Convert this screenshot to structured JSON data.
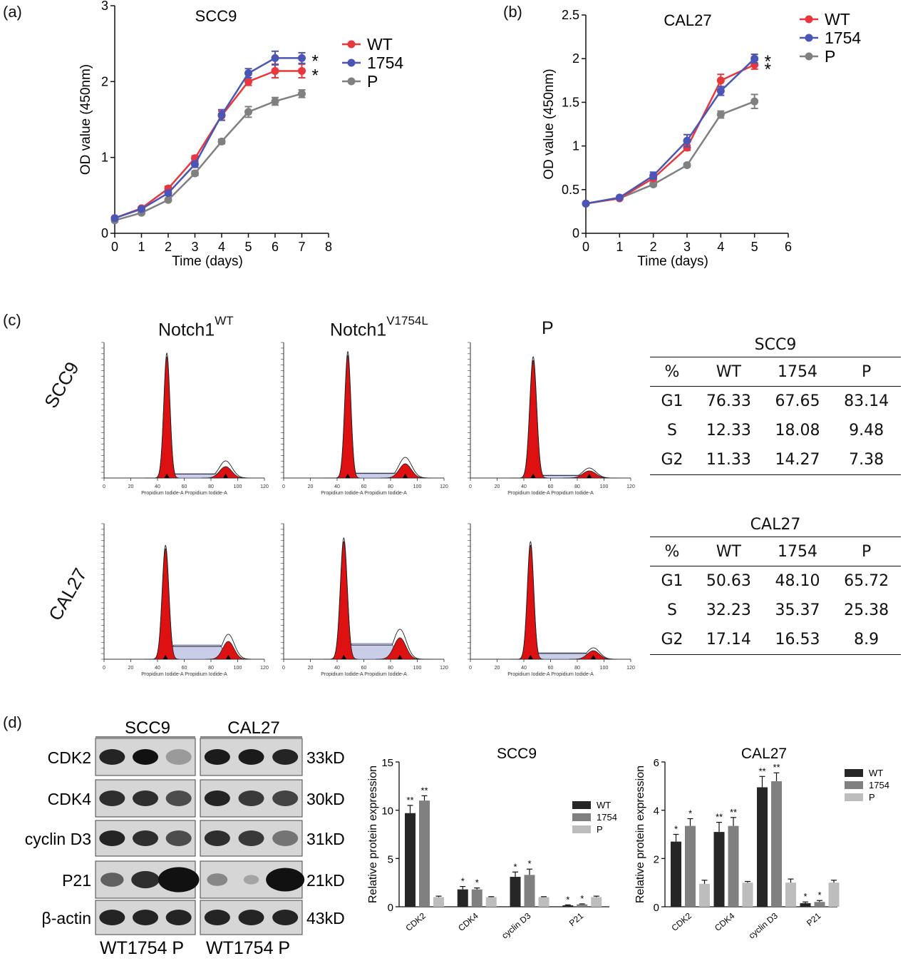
{
  "panel_labels": {
    "a": "(a)",
    "b": "(b)",
    "c": "(c)",
    "d": "(d)"
  },
  "colors": {
    "WT": "#e8383d",
    "1754": "#4b55b5",
    "P": "#808080",
    "hist_fill": "#dd1111",
    "bar_WT": "#262626",
    "bar_1754": "#808080",
    "bar_P": "#bdbdbd"
  },
  "chart_data": [
    {
      "type": "line",
      "panel": "(a)",
      "title": "SCC9",
      "xlabel": "Time (days)",
      "ylabel": "OD value (450nm)",
      "xlim": [
        0,
        8
      ],
      "ylim": [
        0,
        3
      ],
      "xticks": [
        "0",
        "1",
        "2",
        "3",
        "4",
        "5",
        "6",
        "7",
        "8"
      ],
      "yticks": [
        "0",
        "1",
        "2",
        "3"
      ],
      "legend": "top-right",
      "x": [
        0,
        1,
        2,
        3,
        4,
        5,
        6,
        7
      ],
      "series": [
        {
          "name": "WT",
          "values": [
            0.2,
            0.33,
            0.59,
            0.99,
            1.55,
            2.0,
            2.14,
            2.14
          ],
          "err": [
            0.02,
            0.02,
            0.03,
            0.03,
            0.06,
            0.05,
            0.09,
            0.09
          ]
        },
        {
          "name": "1754",
          "values": [
            0.2,
            0.32,
            0.53,
            0.91,
            1.56,
            2.11,
            2.31,
            2.31
          ],
          "err": [
            0.02,
            0.02,
            0.03,
            0.04,
            0.07,
            0.06,
            0.09,
            0.07
          ]
        },
        {
          "name": "P",
          "values": [
            0.17,
            0.27,
            0.44,
            0.79,
            1.21,
            1.6,
            1.74,
            1.84
          ],
          "err": [
            0.02,
            0.02,
            0.02,
            0.03,
            0.03,
            0.07,
            0.05,
            0.05
          ]
        }
      ],
      "annotations": [
        "*",
        "*"
      ]
    },
    {
      "type": "line",
      "panel": "(b)",
      "title": "CAL27",
      "xlabel": "Time (days)",
      "ylabel": "OD value (450nm)",
      "xlim": [
        0,
        6
      ],
      "ylim": [
        0,
        2.5
      ],
      "xticks": [
        "0",
        "1",
        "2",
        "3",
        "4",
        "5",
        "6"
      ],
      "yticks": [
        "0",
        "0.5",
        "1",
        "1.5",
        "2",
        "2.5"
      ],
      "legend": "top-right",
      "x": [
        0,
        1,
        2,
        3,
        4,
        5
      ],
      "series": [
        {
          "name": "WT",
          "values": [
            0.34,
            0.4,
            0.63,
            0.98,
            1.75,
            1.93
          ],
          "err": [
            0.01,
            0.01,
            0.03,
            0.03,
            0.07,
            0.05
          ]
        },
        {
          "name": "1754",
          "values": [
            0.34,
            0.41,
            0.66,
            1.06,
            1.63,
            2.0
          ],
          "err": [
            0.01,
            0.01,
            0.04,
            0.07,
            0.05,
            0.05
          ]
        },
        {
          "name": "P",
          "values": [
            0.34,
            0.4,
            0.56,
            0.78,
            1.36,
            1.51
          ],
          "err": [
            0.01,
            0.01,
            0.02,
            0.02,
            0.04,
            0.08
          ]
        }
      ],
      "annotations": [
        "*",
        "*"
      ]
    },
    {
      "type": "table",
      "title": "SCC9",
      "columns": [
        "%",
        "WT",
        "1754",
        "P"
      ],
      "rows": [
        [
          "G1",
          "76.33",
          "67.65",
          "83.14"
        ],
        [
          "S",
          "12.33",
          "18.08",
          "9.48"
        ],
        [
          "G2",
          "11.33",
          "14.27",
          "7.38"
        ]
      ]
    },
    {
      "type": "table",
      "title": "CAL27",
      "columns": [
        "%",
        "WT",
        "1754",
        "P"
      ],
      "rows": [
        [
          "G1",
          "50.63",
          "48.10",
          "65.72"
        ],
        [
          "S",
          "32.23",
          "35.37",
          "25.38"
        ],
        [
          "G2",
          "17.14",
          "16.53",
          "8.9"
        ]
      ]
    },
    {
      "type": "bar",
      "title": "SCC9",
      "ylabel": "Relative protein expression",
      "ylim": [
        0,
        15
      ],
      "yticks": [
        "0",
        "5",
        "10",
        "15"
      ],
      "categories": [
        "CDK2",
        "CDK4",
        "cyclin D3",
        "P21"
      ],
      "legend": "right",
      "series": [
        {
          "name": "WT",
          "values": [
            9.7,
            1.8,
            3.1,
            0.15
          ],
          "err": [
            0.8,
            0.3,
            0.5,
            0.05
          ],
          "sig": [
            "**",
            "*",
            "*",
            "*"
          ]
        },
        {
          "name": "1754",
          "values": [
            11.0,
            1.8,
            3.3,
            0.25
          ],
          "err": [
            0.5,
            0.15,
            0.6,
            0.05
          ],
          "sig": [
            "**",
            "*",
            "*",
            "*"
          ]
        },
        {
          "name": "P",
          "values": [
            1.0,
            1.0,
            1.0,
            1.0
          ],
          "err": [
            0.1,
            0.05,
            0.05,
            0.1
          ],
          "sig": [
            "",
            "",
            "",
            ""
          ]
        }
      ]
    },
    {
      "type": "bar",
      "title": "CAL27",
      "ylabel": "Relative protein expression",
      "ylim": [
        0,
        6
      ],
      "yticks": [
        "0",
        "2",
        "4",
        "6"
      ],
      "categories": [
        "CDK2",
        "CDK4",
        "cyclin D3",
        "P21"
      ],
      "legend": "top-right",
      "series": [
        {
          "name": "WT",
          "values": [
            2.7,
            3.1,
            4.95,
            0.15
          ],
          "err": [
            0.3,
            0.4,
            0.45,
            0.05
          ],
          "sig": [
            "*",
            "**",
            "**",
            "*"
          ]
        },
        {
          "name": "1754",
          "values": [
            3.35,
            3.35,
            5.2,
            0.2
          ],
          "err": [
            0.3,
            0.35,
            0.35,
            0.06
          ],
          "sig": [
            "*",
            "**",
            "**",
            "*"
          ]
        },
        {
          "name": "P",
          "values": [
            0.95,
            1.0,
            1.0,
            1.0
          ],
          "err": [
            0.15,
            0.05,
            0.15,
            0.1
          ],
          "sig": [
            "",
            "",
            "",
            ""
          ]
        }
      ]
    }
  ],
  "flow": {
    "columns": [
      {
        "name": "Notch1",
        "sup": "WT"
      },
      {
        "name": "Notch1",
        "sup": "V1754L"
      },
      {
        "name": "P",
        "sup": ""
      }
    ],
    "rows": [
      "SCC9",
      "CAL27"
    ],
    "axis_ticks": [
      "0",
      "20",
      "40",
      "60",
      "80",
      "100",
      "120"
    ],
    "axis_label": "Propidium Iodide-A Propidium Iodide-A"
  },
  "western": {
    "groups": [
      "SCC9",
      "CAL27"
    ],
    "proteins": [
      "CDK2",
      "CDK4",
      "cyclin D3",
      "P21",
      "β-actin"
    ],
    "sizes": [
      "33kD",
      "30kD",
      "31kD",
      "21kD",
      "43kD"
    ],
    "lanes_text_left": "WT1754 P",
    "lanes_text_right": "WT1754 P"
  }
}
